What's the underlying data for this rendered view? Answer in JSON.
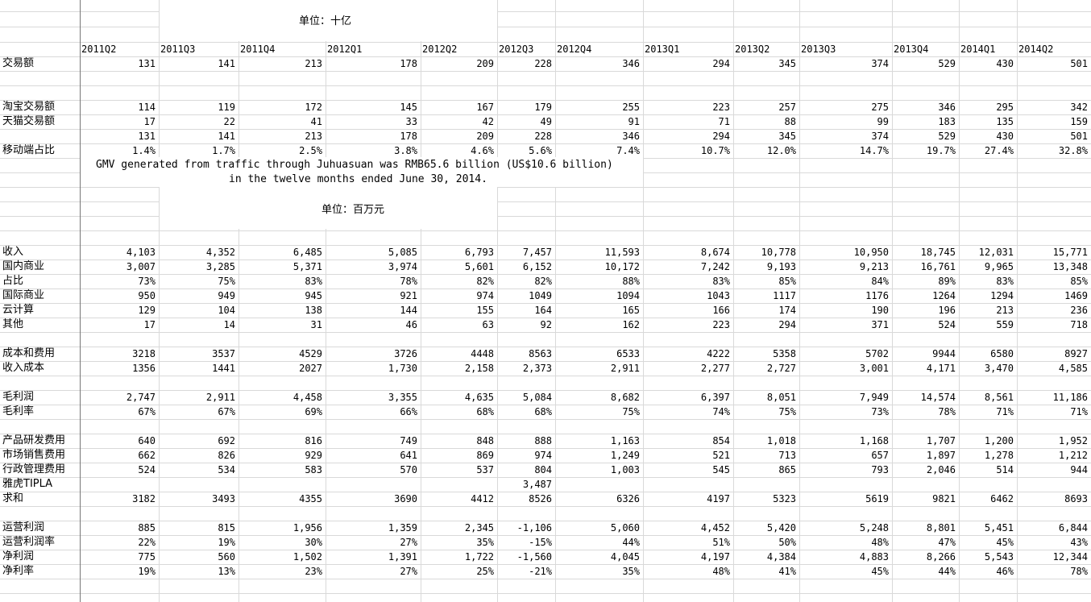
{
  "units": {
    "billion": "单位：十亿",
    "million": "单位：百万元"
  },
  "note": [
    "GMV generated from traffic through Juhuasuan was RMB65.6 billion (US$10.6 billion)",
    "in the twelve months ended June 30, 2014."
  ],
  "columns": [
    "2011Q2",
    "2011Q3",
    "2011Q4",
    "2012Q1",
    "2012Q2",
    "2012Q3",
    "2012Q4",
    "2013Q1",
    "2013Q2",
    "2013Q3",
    "2013Q4",
    "2014Q1",
    "2014Q2"
  ],
  "rows": [
    {
      "row": 4,
      "label": "交易额",
      "values": [
        "131",
        "141",
        "213",
        "178",
        "209",
        "228",
        "346",
        "294",
        "345",
        "374",
        "529",
        "430",
        "501"
      ]
    },
    {
      "row": 7,
      "label": "淘宝交易额",
      "values": [
        "114",
        "119",
        "172",
        "145",
        "167",
        "179",
        "255",
        "223",
        "257",
        "275",
        "346",
        "295",
        "342"
      ]
    },
    {
      "row": 8,
      "label": "天猫交易额",
      "values": [
        "17",
        "22",
        "41",
        "33",
        "42",
        "49",
        "91",
        "71",
        "88",
        "99",
        "183",
        "135",
        "159"
      ]
    },
    {
      "row": 9,
      "label": "",
      "values": [
        "131",
        "141",
        "213",
        "178",
        "209",
        "228",
        "346",
        "294",
        "345",
        "374",
        "529",
        "430",
        "501"
      ]
    },
    {
      "row": 10,
      "label": "移动端占比",
      "values": [
        "1.4%",
        "1.7%",
        "2.5%",
        "3.8%",
        "4.6%",
        "5.6%",
        "7.4%",
        "10.7%",
        "12.0%",
        "14.7%",
        "19.7%",
        "27.4%",
        "32.8%"
      ]
    },
    {
      "row": 17,
      "label": "收入",
      "values": [
        "4,103",
        "4,352",
        "6,485",
        "5,085",
        "6,793",
        "7,457",
        "11,593",
        "8,674",
        "10,778",
        "10,950",
        "18,745",
        "12,031",
        "15,771"
      ]
    },
    {
      "row": 18,
      "label": "国内商业",
      "values": [
        "3,007",
        "3,285",
        "5,371",
        "3,974",
        "5,601",
        "6,152",
        "10,172",
        "7,242",
        "9,193",
        "9,213",
        "16,761",
        "9,965",
        "13,348"
      ]
    },
    {
      "row": 19,
      "label": "占比",
      "values": [
        "73%",
        "75%",
        "83%",
        "78%",
        "82%",
        "82%",
        "88%",
        "83%",
        "85%",
        "84%",
        "89%",
        "83%",
        "85%"
      ]
    },
    {
      "row": 20,
      "label": "国际商业",
      "values": [
        "950",
        "949",
        "945",
        "921",
        "974",
        "1049",
        "1094",
        "1043",
        "1117",
        "1176",
        "1264",
        "1294",
        "1469"
      ]
    },
    {
      "row": 21,
      "label": "云计算",
      "values": [
        "129",
        "104",
        "138",
        "144",
        "155",
        "164",
        "165",
        "166",
        "174",
        "190",
        "196",
        "213",
        "236"
      ]
    },
    {
      "row": 22,
      "label": "其他",
      "values": [
        "17",
        "14",
        "31",
        "46",
        "63",
        "92",
        "162",
        "223",
        "294",
        "371",
        "524",
        "559",
        "718"
      ]
    },
    {
      "row": 24,
      "label": "成本和费用",
      "values": [
        "3218",
        "3537",
        "4529",
        "3726",
        "4448",
        "8563",
        "6533",
        "4222",
        "5358",
        "5702",
        "9944",
        "6580",
        "8927"
      ]
    },
    {
      "row": 25,
      "label": "收入成本",
      "values": [
        "1356",
        "1441",
        "2027",
        "1,730",
        "2,158",
        "2,373",
        "2,911",
        "2,277",
        "2,727",
        "3,001",
        "4,171",
        "3,470",
        "4,585"
      ]
    },
    {
      "row": 27,
      "label": "毛利润",
      "values": [
        "2,747",
        "2,911",
        "4,458",
        "3,355",
        "4,635",
        "5,084",
        "8,682",
        "6,397",
        "8,051",
        "7,949",
        "14,574",
        "8,561",
        "11,186"
      ]
    },
    {
      "row": 28,
      "label": "毛利率",
      "values": [
        "67%",
        "67%",
        "69%",
        "66%",
        "68%",
        "68%",
        "75%",
        "74%",
        "75%",
        "73%",
        "78%",
        "71%",
        "71%"
      ]
    },
    {
      "row": 30,
      "label": "产品研发费用",
      "values": [
        "640",
        "692",
        "816",
        "749",
        "848",
        "888",
        "1,163",
        "854",
        "1,018",
        "1,168",
        "1,707",
        "1,200",
        "1,952"
      ]
    },
    {
      "row": 31,
      "label": "市场销售费用",
      "values": [
        "662",
        "826",
        "929",
        "641",
        "869",
        "974",
        "1,249",
        "521",
        "713",
        "657",
        "1,897",
        "1,278",
        "1,212"
      ]
    },
    {
      "row": 32,
      "label": "行政管理费用",
      "values": [
        "524",
        "534",
        "583",
        "570",
        "537",
        "804",
        "1,003",
        "545",
        "865",
        "793",
        "2,046",
        "514",
        "944"
      ]
    },
    {
      "row": 33,
      "label": "雅虎TIPLA",
      "values": [
        "",
        "",
        "",
        "",
        "",
        "3,487",
        "",
        "",
        "",
        "",
        "",
        "",
        ""
      ]
    },
    {
      "row": 34,
      "label": "求和",
      "values": [
        "3182",
        "3493",
        "4355",
        "3690",
        "4412",
        "8526",
        "6326",
        "4197",
        "5323",
        "5619",
        "9821",
        "6462",
        "8693"
      ]
    },
    {
      "row": 36,
      "label": "运营利润",
      "values": [
        "885",
        "815",
        "1,956",
        "1,359",
        "2,345",
        "-1,106",
        "5,060",
        "4,452",
        "5,420",
        "5,248",
        "8,801",
        "5,451",
        "6,844"
      ]
    },
    {
      "row": 37,
      "label": "运营利润率",
      "values": [
        "22%",
        "19%",
        "30%",
        "27%",
        "35%",
        "-15%",
        "44%",
        "51%",
        "50%",
        "48%",
        "47%",
        "45%",
        "43%"
      ]
    },
    {
      "row": 38,
      "label": "净利润",
      "values": [
        "775",
        "560",
        "1,502",
        "1,391",
        "1,722",
        "-1,560",
        "4,045",
        "4,197",
        "4,384",
        "4,883",
        "8,266",
        "5,543",
        "12,344"
      ]
    },
    {
      "row": 39,
      "label": "净利率",
      "values": [
        "19%",
        "13%",
        "23%",
        "27%",
        "25%",
        "-21%",
        "35%",
        "48%",
        "41%",
        "45%",
        "44%",
        "46%",
        "78%"
      ]
    }
  ]
}
